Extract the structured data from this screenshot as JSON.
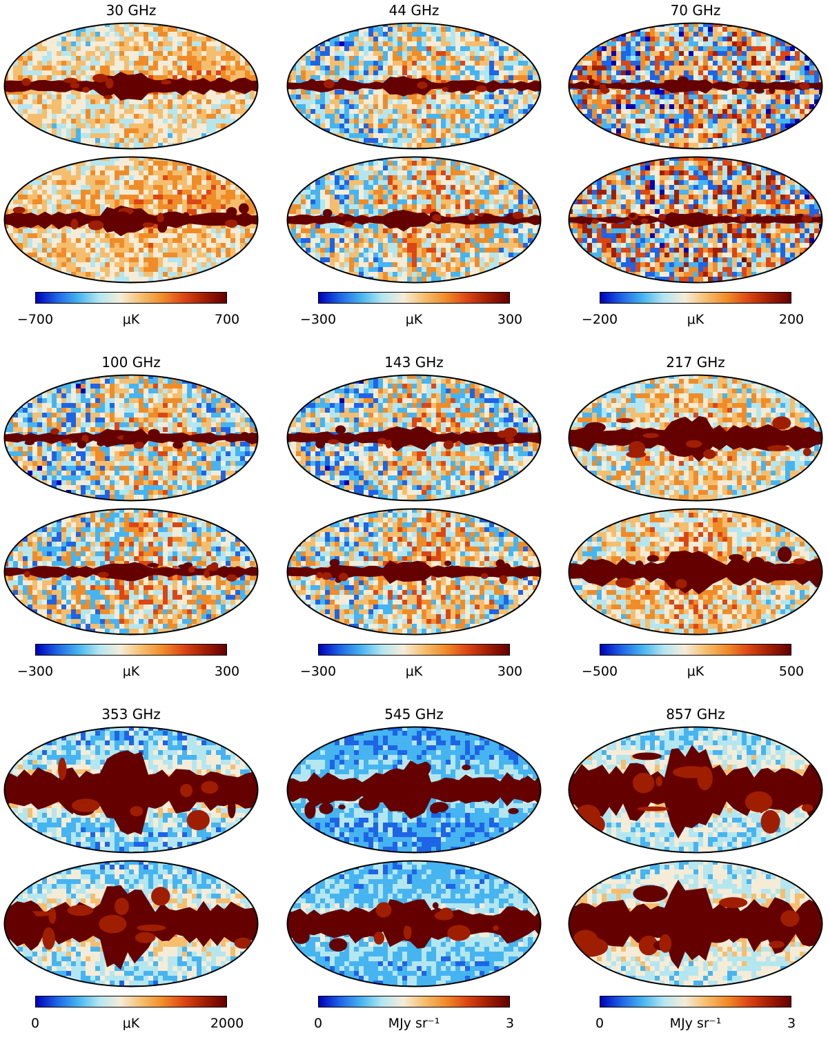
{
  "rows": [
    {
      "panels": [
        {
          "freq": "30 GHz",
          "cb_min": "−700",
          "unit": "μK",
          "cb_max": "700",
          "style": "low",
          "noise": 0.35,
          "band": 15
        },
        {
          "freq": "44 GHz",
          "cb_min": "−300",
          "unit": "μK",
          "cb_max": "300",
          "style": "mid",
          "noise": 0.55,
          "band": 10
        },
        {
          "freq": "70 GHz",
          "cb_min": "−200",
          "unit": "μK",
          "cb_max": "200",
          "style": "noisy",
          "noise": 0.85,
          "band": 8
        }
      ]
    },
    {
      "panels": [
        {
          "freq": "100 GHz",
          "cb_min": "−300",
          "unit": "μK",
          "cb_max": "300",
          "style": "mid",
          "noise": 0.6,
          "band": 10
        },
        {
          "freq": "143 GHz",
          "cb_min": "−300",
          "unit": "μK",
          "cb_max": "300",
          "style": "mid",
          "noise": 0.6,
          "band": 12
        },
        {
          "freq": "217 GHz",
          "cb_min": "−500",
          "unit": "μK",
          "cb_max": "500",
          "style": "dusty",
          "noise": 0.45,
          "band": 24
        }
      ]
    },
    {
      "panels": [
        {
          "freq": "353 GHz",
          "cb_min": "0",
          "unit": "μK",
          "cb_max": "2000",
          "style": "dust",
          "noise": 0.3,
          "band": 40
        },
        {
          "freq": "545 GHz",
          "cb_min": "0",
          "unit": "MJy sr⁻¹",
          "cb_max": "3",
          "style": "dust2",
          "noise": 0.2,
          "band": 30
        },
        {
          "freq": "857 GHz",
          "cb_min": "0",
          "unit": "MJy sr⁻¹",
          "cb_max": "3",
          "style": "dust3",
          "noise": 0.25,
          "band": 46
        }
      ]
    }
  ],
  "colormap": [
    "#0000b8",
    "#1e64e6",
    "#46b4f0",
    "#b4e6f0",
    "#f5ecd8",
    "#f5be6e",
    "#f08c28",
    "#dc4614",
    "#a01e00",
    "#640000"
  ]
}
